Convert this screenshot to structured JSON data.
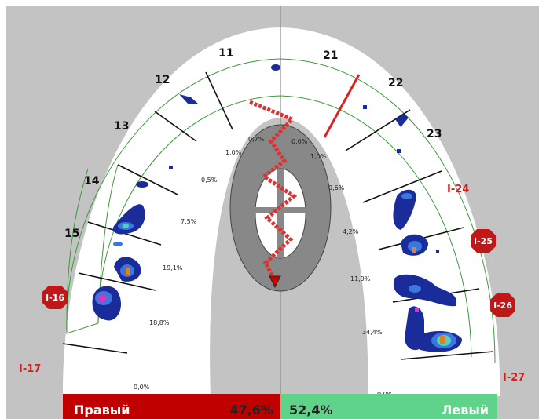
{
  "teeth": [
    "11",
    "12",
    "13",
    "14",
    "15",
    "21",
    "22",
    "23"
  ],
  "percentages": [
    "0,7%",
    "0,0%",
    "1,0%",
    "1,0%",
    "0,5%",
    "0,6%",
    "7,5%",
    "4,2%",
    "19,1%",
    "11,9%",
    "18,8%",
    "34,4%",
    "0,0%",
    "0,0%"
  ],
  "implants": {
    "marked": [
      "I-16",
      "I-25",
      "I-26"
    ],
    "plain": [
      "I-17",
      "I-24",
      "I-27"
    ]
  },
  "footer": {
    "right_side": {
      "label": "Правый",
      "percent": "47,6%"
    },
    "left_side": {
      "percent": "52,4%",
      "label": "Левый"
    }
  }
}
